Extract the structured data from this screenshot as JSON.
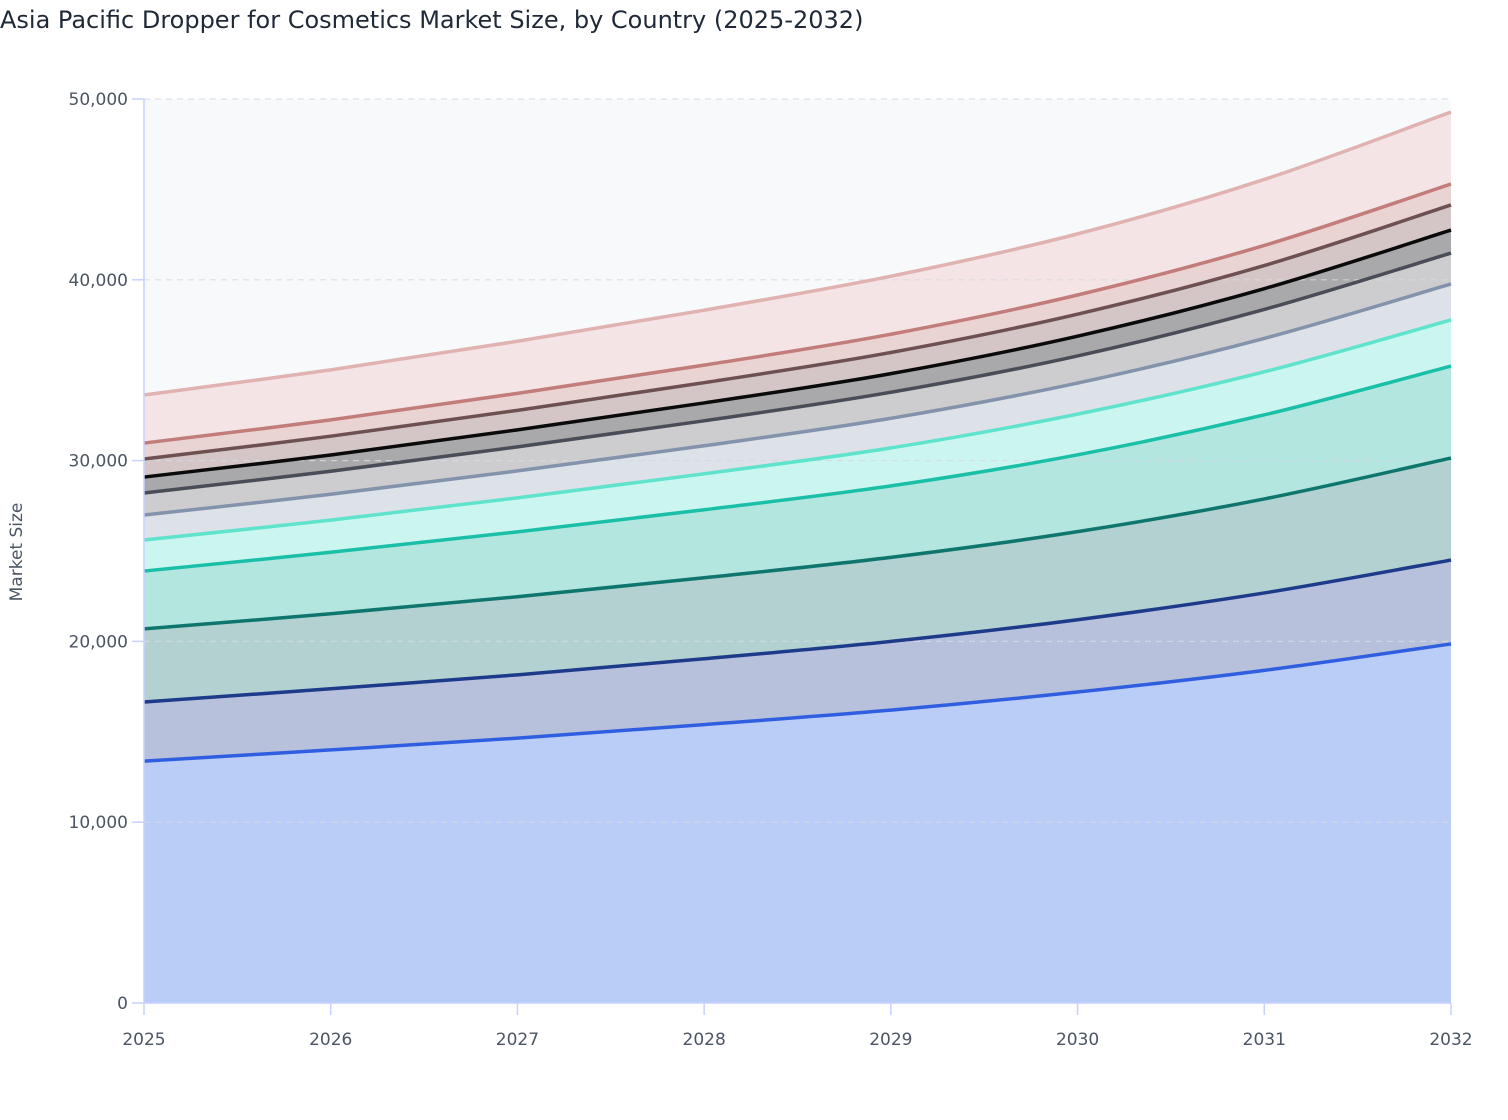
{
  "chart_data": {
    "type": "area",
    "stacked": true,
    "title": "Asia Pacific Dropper for Cosmetics Market Size, by Country (2025-2032)",
    "xlabel": "",
    "ylabel": "Market Size",
    "x": [
      2025,
      2026,
      2027,
      2028,
      2029,
      2030,
      2031,
      2032
    ],
    "x_tick_labels": [
      "2025",
      "2026",
      "2027",
      "2028",
      "2029",
      "2030",
      "2031",
      "2032"
    ],
    "ylim": [
      0,
      50000
    ],
    "y_ticks": [
      0,
      10000,
      20000,
      30000,
      40000,
      50000
    ],
    "y_tick_labels": [
      "0",
      "10,000",
      "20,000",
      "30,000",
      "40,000",
      "50,000"
    ],
    "grid": true,
    "legend": "none",
    "series": [
      {
        "values": [
          13380,
          14000,
          14650,
          15400,
          16200,
          17200,
          18400,
          19860
        ],
        "line_color": "#2f5fe0",
        "fill_color": "#bacdf6"
      },
      {
        "values": [
          3270,
          3380,
          3500,
          3640,
          3800,
          4000,
          4280,
          4640
        ],
        "line_color": "#1e3a8a",
        "fill_color": "#b8c1dc"
      },
      {
        "values": [
          4040,
          4150,
          4320,
          4480,
          4650,
          4870,
          5200,
          5640
        ],
        "line_color": "#0f766e",
        "fill_color": "#b3d1d0"
      },
      {
        "values": [
          3200,
          3400,
          3590,
          3760,
          3950,
          4250,
          4650,
          5090
        ],
        "line_color": "#1abfa8",
        "fill_color": "#b4e6e0"
      },
      {
        "values": [
          1720,
          1780,
          1880,
          1990,
          2100,
          2250,
          2380,
          2550
        ],
        "line_color": "#5fe3cc",
        "fill_color": "#cbf6f0"
      },
      {
        "values": [
          1380,
          1430,
          1490,
          1550,
          1640,
          1720,
          1850,
          1990
        ],
        "line_color": "#8393ab",
        "fill_color": "#dde1e8"
      },
      {
        "values": [
          1220,
          1270,
          1330,
          1380,
          1440,
          1500,
          1600,
          1710
        ],
        "line_color": "#4a4d57",
        "fill_color": "#cdcdd0"
      },
      {
        "values": [
          880,
          900,
          940,
          990,
          1030,
          1090,
          1150,
          1270
        ],
        "line_color": "#0a0a0a",
        "fill_color": "#a9a9ab"
      },
      {
        "values": [
          1000,
          1040,
          1080,
          1120,
          1170,
          1220,
          1280,
          1390
        ],
        "line_color": "#6e5050",
        "fill_color": "#d4c6c6"
      },
      {
        "values": [
          880,
          900,
          940,
          970,
          1010,
          1060,
          1110,
          1160
        ],
        "line_color": "#c27c7a",
        "fill_color": "#ead3d3"
      },
      {
        "values": [
          2660,
          2770,
          2880,
          3040,
          3210,
          3380,
          3650,
          3980
        ],
        "line_color": "#e0b2b0",
        "fill_color": "#f4e4e5"
      }
    ],
    "plot_background": "#f8f9fb",
    "grid_color": "#d5dae3",
    "axis_color": "#c7d2fe"
  }
}
